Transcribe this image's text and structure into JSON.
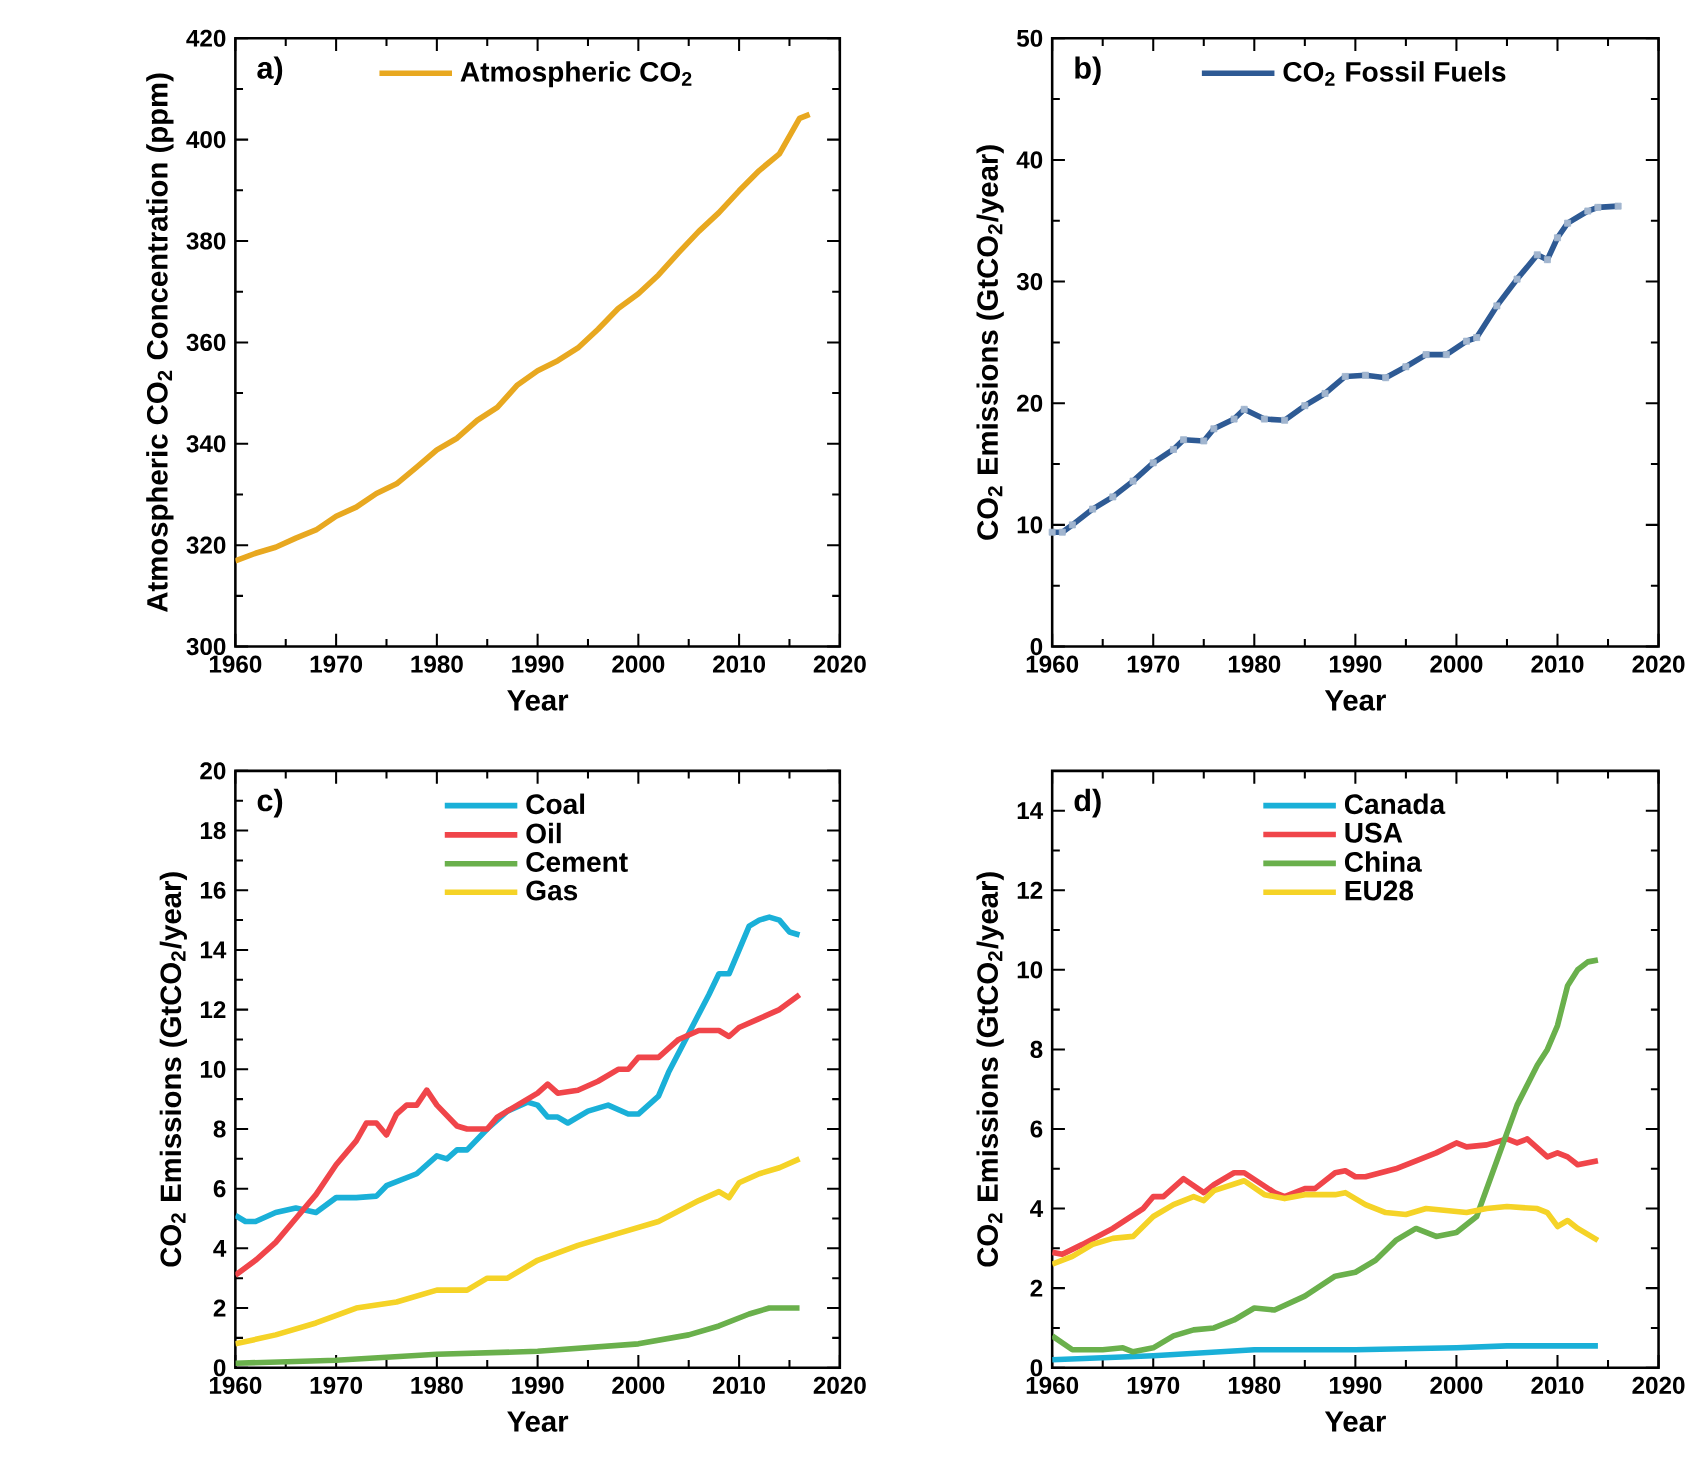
{
  "chart_data": [
    {
      "type": "line",
      "xlabel": "Year",
      "ylabel": "Atmospheric CO$_{2}$ Concentration (ppm)",
      "annotations": [
        "a)"
      ],
      "legend": "top",
      "xlim": [
        1960,
        2020
      ],
      "ylim": [
        300,
        420
      ],
      "xticks": [
        1960,
        1970,
        1980,
        1990,
        2000,
        2010,
        2020
      ],
      "yticks": [
        300,
        320,
        340,
        360,
        380,
        400,
        420
      ],
      "series": [
        {
          "name": "Atmospheric CO$_{2}$",
          "color": "#e8a820",
          "x": [
            1960,
            1962,
            1964,
            1966,
            1968,
            1970,
            1972,
            1974,
            1976,
            1978,
            1980,
            1982,
            1984,
            1986,
            1988,
            1990,
            1992,
            1994,
            1996,
            1998,
            2000,
            2002,
            2004,
            2006,
            2008,
            2010,
            2012,
            2014,
            2016,
            2017
          ],
          "values": [
            316.9,
            318.4,
            319.6,
            321.4,
            323.0,
            325.7,
            327.5,
            330.2,
            332.1,
            335.4,
            338.8,
            341.1,
            344.6,
            347.2,
            351.6,
            354.4,
            356.4,
            358.9,
            362.6,
            366.7,
            369.6,
            373.3,
            377.7,
            381.9,
            385.6,
            389.9,
            393.9,
            397.2,
            404.2,
            405.0
          ]
        }
      ]
    },
    {
      "type": "line",
      "xlabel": "Year",
      "ylabel": "CO$_{2}$ Emissions (GtCO$_{2}$/year)",
      "annotations": [
        "b)"
      ],
      "legend": "top",
      "marker": "square",
      "xlim": [
        1960,
        2020
      ],
      "ylim": [
        0,
        50
      ],
      "xticks": [
        1960,
        1970,
        1980,
        1990,
        2000,
        2010,
        2020
      ],
      "yticks": [
        0,
        10,
        20,
        30,
        40,
        50
      ],
      "series": [
        {
          "name": "CO$_{2}$ Fossil Fuels",
          "color": "#2e5a94",
          "x": [
            1960,
            1961,
            1962,
            1964,
            1966,
            1968,
            1970,
            1972,
            1973,
            1975,
            1976,
            1978,
            1979,
            1981,
            1983,
            1985,
            1987,
            1989,
            1991,
            1993,
            1995,
            1997,
            1999,
            2001,
            2002,
            2004,
            2006,
            2008,
            2009,
            2010,
            2011,
            2013,
            2014,
            2016
          ],
          "values": [
            9.4,
            9.4,
            10.0,
            11.3,
            12.3,
            13.6,
            15.1,
            16.2,
            17.0,
            16.9,
            17.9,
            18.7,
            19.5,
            18.7,
            18.6,
            19.8,
            20.8,
            22.2,
            22.3,
            22.1,
            23.0,
            24.0,
            24.0,
            25.1,
            25.4,
            28.0,
            30.2,
            32.2,
            31.8,
            33.6,
            34.8,
            35.8,
            36.1,
            36.2
          ]
        }
      ]
    },
    {
      "type": "line",
      "xlabel": "Year",
      "ylabel": "CO$_{2}$ Emissions (GtCO$_{2}$/year)",
      "annotations": [
        "c)"
      ],
      "legend": "top",
      "xlim": [
        1960,
        2020
      ],
      "ylim": [
        0,
        20
      ],
      "xticks": [
        1960,
        1970,
        1980,
        1990,
        2000,
        2010,
        2020
      ],
      "yticks": [
        0,
        2,
        4,
        6,
        8,
        10,
        12,
        14,
        16,
        18,
        20
      ],
      "series": [
        {
          "name": "Coal",
          "color": "#1ab0d8",
          "x": [
            1960,
            1961,
            1962,
            1964,
            1966,
            1968,
            1970,
            1972,
            1974,
            1975,
            1978,
            1980,
            1981,
            1982,
            1983,
            1985,
            1987,
            1989,
            1990,
            1991,
            1992,
            1993,
            1995,
            1997,
            1999,
            2000,
            2002,
            2003,
            2005,
            2007,
            2008,
            2009,
            2011,
            2012,
            2013,
            2014,
            2015,
            2016
          ],
          "values": [
            5.1,
            4.9,
            4.9,
            5.2,
            5.35,
            5.2,
            5.7,
            5.7,
            5.75,
            6.1,
            6.5,
            7.1,
            7.0,
            7.3,
            7.3,
            8.0,
            8.6,
            8.9,
            8.8,
            8.4,
            8.4,
            8.2,
            8.6,
            8.8,
            8.5,
            8.5,
            9.1,
            9.9,
            11.2,
            12.5,
            13.2,
            13.2,
            14.8,
            15.0,
            15.1,
            15.0,
            14.6,
            14.5
          ]
        },
        {
          "name": "Oil",
          "color": "#f0454a",
          "x": [
            1960,
            1962,
            1964,
            1966,
            1968,
            1970,
            1972,
            1973,
            1974,
            1975,
            1976,
            1977,
            1978,
            1979,
            1980,
            1982,
            1983,
            1985,
            1986,
            1988,
            1990,
            1991,
            1992,
            1994,
            1996,
            1998,
            1999,
            2000,
            2002,
            2004,
            2006,
            2008,
            2009,
            2010,
            2012,
            2014,
            2016
          ],
          "values": [
            3.1,
            3.6,
            4.2,
            5.0,
            5.8,
            6.8,
            7.6,
            8.2,
            8.2,
            7.8,
            8.5,
            8.8,
            8.8,
            9.3,
            8.8,
            8.1,
            8.0,
            8.0,
            8.4,
            8.8,
            9.2,
            9.5,
            9.2,
            9.3,
            9.6,
            10.0,
            10.0,
            10.4,
            10.4,
            11.0,
            11.3,
            11.3,
            11.1,
            11.4,
            11.7,
            12.0,
            12.5
          ]
        },
        {
          "name": "Cement",
          "color": "#6ab04c",
          "x": [
            1960,
            1970,
            1980,
            1990,
            2000,
            2005,
            2008,
            2011,
            2013,
            2016
          ],
          "values": [
            0.15,
            0.25,
            0.45,
            0.55,
            0.8,
            1.1,
            1.4,
            1.8,
            2.0,
            2.0
          ]
        },
        {
          "name": "Gas",
          "color": "#f5d327",
          "x": [
            1960,
            1964,
            1968,
            1972,
            1976,
            1980,
            1983,
            1985,
            1987,
            1990,
            1994,
            1998,
            2002,
            2006,
            2008,
            2009,
            2010,
            2012,
            2014,
            2016
          ],
          "values": [
            0.8,
            1.1,
            1.5,
            2.0,
            2.2,
            2.6,
            2.6,
            3.0,
            3.0,
            3.6,
            4.1,
            4.5,
            4.9,
            5.6,
            5.9,
            5.7,
            6.2,
            6.5,
            6.7,
            7.0
          ]
        }
      ]
    },
    {
      "type": "line",
      "xlabel": "Year",
      "ylabel": "CO$_{2}$ Emissions (GtCO$_{2}$/year)",
      "annotations": [
        "d)"
      ],
      "legend": "top",
      "xlim": [
        1960,
        2020
      ],
      "ylim": [
        0,
        15
      ],
      "xticks": [
        1960,
        1970,
        1980,
        1990,
        2000,
        2010,
        2020
      ],
      "yticks": [
        0,
        2,
        4,
        6,
        8,
        10,
        12,
        14
      ],
      "series": [
        {
          "name": "Canada",
          "color": "#1ab0d8",
          "x": [
            1960,
            1970,
            1980,
            1990,
            2000,
            2005,
            2014
          ],
          "values": [
            0.2,
            0.3,
            0.45,
            0.45,
            0.5,
            0.55,
            0.55
          ]
        },
        {
          "name": "USA",
          "color": "#f0454a",
          "x": [
            1960,
            1961,
            1963,
            1966,
            1969,
            1970,
            1971,
            1973,
            1975,
            1976,
            1978,
            1979,
            1982,
            1983,
            1985,
            1986,
            1988,
            1989,
            1990,
            1991,
            1994,
            1996,
            1998,
            2000,
            2001,
            2003,
            2005,
            2006,
            2007,
            2009,
            2010,
            2011,
            2012,
            2014
          ],
          "values": [
            2.9,
            2.85,
            3.1,
            3.5,
            4.0,
            4.3,
            4.3,
            4.75,
            4.4,
            4.6,
            4.9,
            4.9,
            4.4,
            4.3,
            4.5,
            4.5,
            4.9,
            4.95,
            4.8,
            4.8,
            5.0,
            5.2,
            5.4,
            5.65,
            5.55,
            5.6,
            5.75,
            5.65,
            5.75,
            5.3,
            5.4,
            5.3,
            5.1,
            5.2
          ]
        },
        {
          "name": "China",
          "color": "#6ab04c",
          "x": [
            1960,
            1962,
            1965,
            1967,
            1968,
            1970,
            1972,
            1974,
            1976,
            1978,
            1980,
            1982,
            1985,
            1988,
            1990,
            1992,
            1994,
            1996,
            1998,
            2000,
            2002,
            2004,
            2006,
            2008,
            2009,
            2010,
            2011,
            2012,
            2013,
            2014
          ],
          "values": [
            0.8,
            0.45,
            0.45,
            0.5,
            0.4,
            0.5,
            0.8,
            0.95,
            1.0,
            1.2,
            1.5,
            1.45,
            1.8,
            2.3,
            2.4,
            2.7,
            3.2,
            3.5,
            3.3,
            3.4,
            3.8,
            5.2,
            6.6,
            7.6,
            8.0,
            8.6,
            9.6,
            10.0,
            10.2,
            10.25
          ]
        },
        {
          "name": "EU28",
          "color": "#f5d327",
          "x": [
            1960,
            1962,
            1964,
            1966,
            1968,
            1970,
            1972,
            1974,
            1975,
            1976,
            1979,
            1981,
            1983,
            1985,
            1988,
            1989,
            1991,
            1993,
            1995,
            1997,
            1999,
            2001,
            2003,
            2005,
            2008,
            2009,
            2010,
            2011,
            2012,
            2014
          ],
          "values": [
            2.6,
            2.8,
            3.1,
            3.25,
            3.3,
            3.8,
            4.1,
            4.3,
            4.2,
            4.45,
            4.7,
            4.35,
            4.25,
            4.35,
            4.35,
            4.4,
            4.1,
            3.9,
            3.85,
            4.0,
            3.95,
            3.9,
            4.0,
            4.05,
            4.0,
            3.9,
            3.55,
            3.7,
            3.5,
            3.2
          ]
        }
      ]
    }
  ]
}
